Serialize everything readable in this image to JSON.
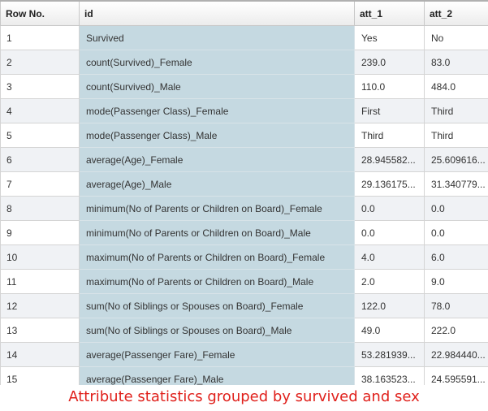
{
  "table": {
    "columns": [
      "Row No.",
      "id",
      "att_1",
      "att_2"
    ],
    "rows": [
      [
        "1",
        "Survived",
        "Yes",
        "No"
      ],
      [
        "2",
        "count(Survived)_Female",
        "239.0",
        "83.0"
      ],
      [
        "3",
        "count(Survived)_Male",
        "110.0",
        "484.0"
      ],
      [
        "4",
        "mode(Passenger Class)_Female",
        "First",
        "Third"
      ],
      [
        "5",
        "mode(Passenger Class)_Male",
        "Third",
        "Third"
      ],
      [
        "6",
        "average(Age)_Female",
        "28.945582...",
        "25.609616..."
      ],
      [
        "7",
        "average(Age)_Male",
        "29.136175...",
        "31.340779..."
      ],
      [
        "8",
        "minimum(No of Parents or Children on Board)_Female",
        "0.0",
        "0.0"
      ],
      [
        "9",
        "minimum(No of Parents or Children on Board)_Male",
        "0.0",
        "0.0"
      ],
      [
        "10",
        "maximum(No of Parents or Children on Board)_Female",
        "4.0",
        "6.0"
      ],
      [
        "11",
        "maximum(No of Parents or Children on Board)_Male",
        "2.0",
        "9.0"
      ],
      [
        "12",
        "sum(No of Siblings or Spouses on Board)_Female",
        "122.0",
        "78.0"
      ],
      [
        "13",
        "sum(No of Siblings or Spouses on Board)_Male",
        "49.0",
        "222.0"
      ],
      [
        "14",
        "average(Passenger Fare)_Female",
        "53.281939...",
        "22.984440..."
      ],
      [
        "15",
        "average(Passenger Fare)_Male",
        "38.163523...",
        "24.595591..."
      ]
    ]
  },
  "caption": "Attribute statistics grouped by survived and sex",
  "colors": {
    "id_column_bg": "#c5d9e1",
    "caption_text": "#e0201b"
  }
}
